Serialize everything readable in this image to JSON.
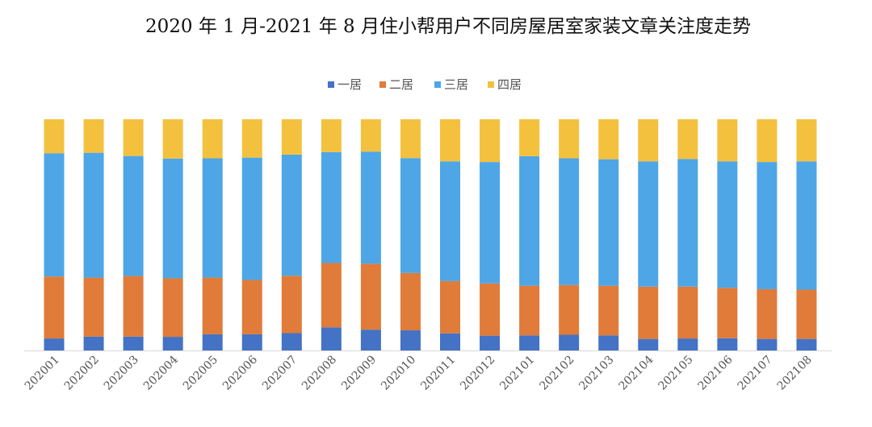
{
  "chart_data": {
    "type": "bar",
    "stacked": true,
    "normalized": true,
    "title": "2020 年 1 月-2021 年 8 月住小帮用户不同房屋居室家装文章关注度走势",
    "xlabel": "",
    "ylabel": "",
    "ylim": [
      0,
      100
    ],
    "legend_position": "top",
    "categories": [
      "202001",
      "202002",
      "202003",
      "202004",
      "202005",
      "202006",
      "202007",
      "202008",
      "202009",
      "202010",
      "202011",
      "202012",
      "202101",
      "202102",
      "202103",
      "202104",
      "202105",
      "202106",
      "202107",
      "202108"
    ],
    "series": [
      {
        "name": "一居",
        "color": "#4472C4",
        "values": [
          5.2,
          6.0,
          6.0,
          5.9,
          7.0,
          7.0,
          7.5,
          10.0,
          9.0,
          8.7,
          7.4,
          6.4,
          6.5,
          6.8,
          6.5,
          5.0,
          5.2,
          5.3,
          5.0,
          5.0
        ]
      },
      {
        "name": "二居",
        "color": "#E07B39",
        "values": [
          26.8,
          25.5,
          26.2,
          25.3,
          24.5,
          23.5,
          24.8,
          27.8,
          28.5,
          24.8,
          22.6,
          22.6,
          21.5,
          21.5,
          21.5,
          22.6,
          22.4,
          21.8,
          21.5,
          21.3
        ]
      },
      {
        "name": "三居",
        "color": "#4EA6E6",
        "values": [
          53.3,
          54.0,
          51.9,
          51.8,
          51.6,
          52.9,
          52.4,
          48.0,
          48.5,
          49.7,
          51.8,
          52.5,
          56.0,
          54.8,
          54.7,
          54.2,
          55.2,
          54.7,
          55.0,
          55.5
        ]
      },
      {
        "name": "四居",
        "color": "#F4C13E",
        "values": [
          14.7,
          14.5,
          15.9,
          17.0,
          16.9,
          16.6,
          15.3,
          14.2,
          14.0,
          16.8,
          18.2,
          18.5,
          16.0,
          16.9,
          17.3,
          18.2,
          17.2,
          18.2,
          18.5,
          18.2
        ]
      }
    ]
  }
}
